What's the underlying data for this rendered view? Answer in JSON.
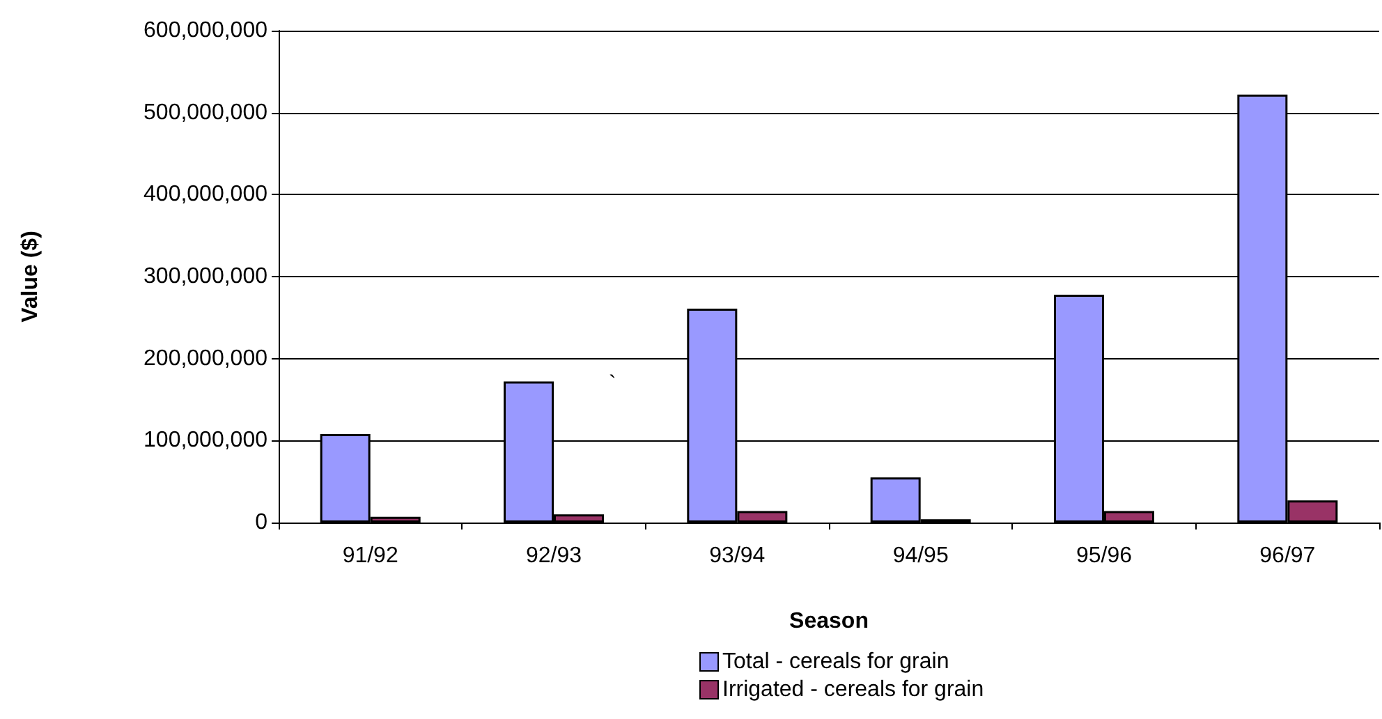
{
  "chart_data": {
    "type": "bar",
    "xlabel": "Season",
    "ylabel": "Value ($)",
    "categories": [
      "91/92",
      "92/93",
      "93/94",
      "94/95",
      "95/96",
      "96/97"
    ],
    "series": [
      {
        "name": "Total - cereals for grain",
        "color": "#9999ff",
        "values": [
          108000000,
          172000000,
          261000000,
          55000000,
          278000000,
          522000000
        ]
      },
      {
        "name": "Irrigated - cereals for grain",
        "color": "#993366",
        "values": [
          7000000,
          10000000,
          14000000,
          4000000,
          14000000,
          27000000
        ]
      }
    ],
    "ylim": [
      0,
      600000000
    ],
    "yticks": [
      0,
      {
        "value": 100000000,
        "label": "100,000,000"
      },
      {
        "value": 200000000,
        "label": "200,000,000"
      },
      {
        "value": 300000000,
        "label": "300,000,000"
      },
      {
        "value": 400000000,
        "label": "400,000,000"
      },
      {
        "value": 500000000,
        "label": "500,000,000"
      },
      {
        "value": 600000000,
        "label": "600,000,000"
      }
    ],
    "grid": "y",
    "legend": "bottom",
    "annotations": [
      "`"
    ]
  }
}
